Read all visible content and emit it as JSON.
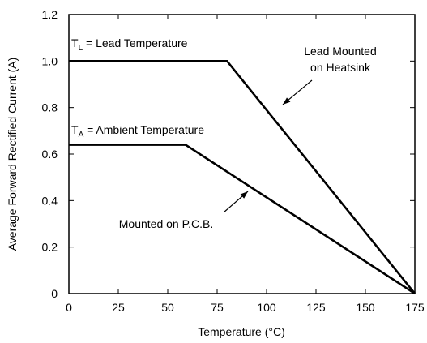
{
  "chart_data": {
    "type": "line",
    "xlabel": "Temperature (°C)",
    "ylabel": "Average Forward Rectified Current (A)",
    "series": [
      {
        "color": "#000000",
        "x": [
          0,
          80,
          175
        ],
        "values": [
          1,
          1,
          0
        ]
      },
      {
        "color": "#000000",
        "x": [
          0,
          59,
          175
        ],
        "values": [
          0.64,
          0.64,
          0
        ]
      }
    ],
    "xlim": [
      0,
      175
    ],
    "xticks": [
      0,
      25,
      50,
      75,
      100,
      125,
      150,
      175
    ],
    "ylim": [
      0,
      1.2
    ],
    "yticks": [
      0,
      0.2,
      0.4,
      0.6,
      0.8,
      {
        "value": 1,
        "label": "1.0"
      },
      1.2
    ],
    "grid": false,
    "annotations": [
      {
        "text": [
          "T",
          "L",
          " = Lead Temperature"
        ]
      },
      {
        "text": [
          "T",
          "A",
          " = Ambient Temperature"
        ]
      },
      {
        "text": [
          "Lead Mounted",
          "on Heatsink"
        ]
      },
      {
        "text": [
          "Mounted on P.C.B."
        ]
      }
    ]
  }
}
